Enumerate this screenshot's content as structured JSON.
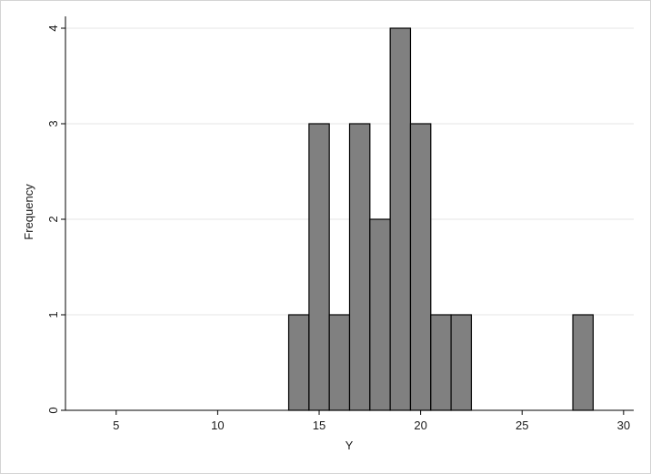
{
  "chart_data": {
    "type": "bar",
    "title": "",
    "xlabel": "Y",
    "ylabel": "Frequency",
    "xlim": [
      2.5,
      30.5
    ],
    "ylim": [
      0,
      4.2
    ],
    "grid": true,
    "bar_color": "#808080",
    "bar_edge_color": "#000000",
    "grid_color": "#e6e6e6",
    "x_ticks": [
      5,
      10,
      15,
      20,
      25,
      30
    ],
    "y_ticks": [
      0,
      1,
      2,
      3,
      4
    ],
    "bins": [
      {
        "start": 13.5,
        "end": 14.5,
        "count": 1
      },
      {
        "start": 14.5,
        "end": 15.5,
        "count": 3
      },
      {
        "start": 15.5,
        "end": 16.5,
        "count": 1
      },
      {
        "start": 16.5,
        "end": 17.5,
        "count": 3
      },
      {
        "start": 17.5,
        "end": 18.5,
        "count": 2
      },
      {
        "start": 18.5,
        "end": 19.5,
        "count": 4
      },
      {
        "start": 19.5,
        "end": 20.5,
        "count": 3
      },
      {
        "start": 20.5,
        "end": 21.5,
        "count": 1
      },
      {
        "start": 21.5,
        "end": 22.5,
        "count": 1
      },
      {
        "start": 27.5,
        "end": 28.5,
        "count": 1
      }
    ]
  }
}
